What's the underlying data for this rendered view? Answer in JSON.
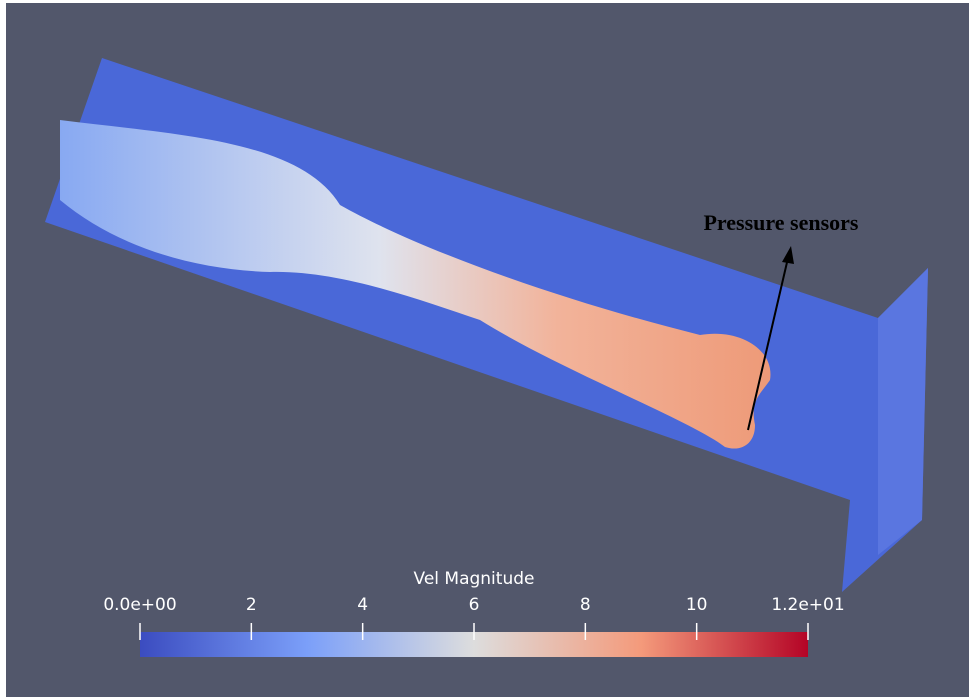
{
  "annotation": {
    "text": "Pressure sensors"
  },
  "colorbar": {
    "title": "Vel Magnitude",
    "range": [
      0,
      12
    ],
    "ticks": [
      {
        "value": 0,
        "label": "0.0e+00"
      },
      2,
      4,
      6,
      8,
      10,
      {
        "value": 12,
        "label": "1.2e+01"
      }
    ]
  }
}
